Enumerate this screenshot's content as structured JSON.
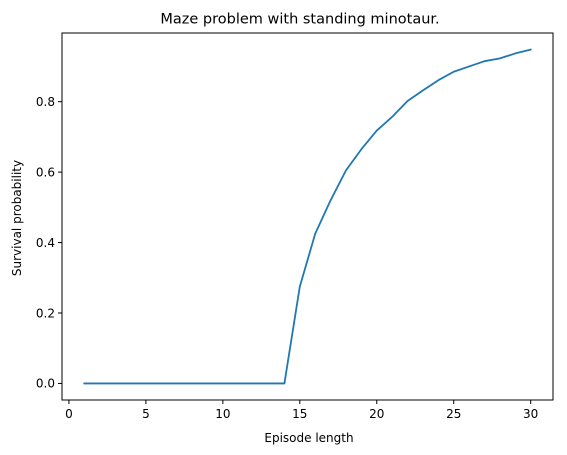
{
  "chart_data": {
    "type": "line",
    "title": "Maze problem with standing minotaur.",
    "xlabel": "Episode length",
    "ylabel": "Survival probability",
    "xlim": [
      -0.45,
      31.45
    ],
    "ylim": [
      -0.047,
      0.995
    ],
    "xticks": [
      0,
      5,
      10,
      15,
      20,
      25,
      30
    ],
    "xtick_labels": [
      "0",
      "5",
      "10",
      "15",
      "20",
      "25",
      "30"
    ],
    "yticks": [
      0.0,
      0.2,
      0.4,
      0.6,
      0.8
    ],
    "ytick_labels": [
      "0.0",
      "0.2",
      "0.4",
      "0.6",
      "0.8"
    ],
    "grid": false,
    "series": [
      {
        "name": "survival",
        "color": "#1f77b4",
        "x": [
          1,
          2,
          3,
          4,
          5,
          6,
          7,
          8,
          9,
          10,
          11,
          12,
          13,
          14,
          15,
          16,
          17,
          18,
          19,
          20,
          21,
          22,
          23,
          24,
          25,
          26,
          27,
          28,
          29,
          30
        ],
        "y": [
          0,
          0,
          0,
          0,
          0,
          0,
          0,
          0,
          0,
          0,
          0,
          0,
          0,
          0,
          0.275,
          0.425,
          0.52,
          0.605,
          0.665,
          0.718,
          0.757,
          0.802,
          0.832,
          0.861,
          0.885,
          0.9,
          0.915,
          0.923,
          0.937,
          0.948
        ]
      }
    ]
  }
}
